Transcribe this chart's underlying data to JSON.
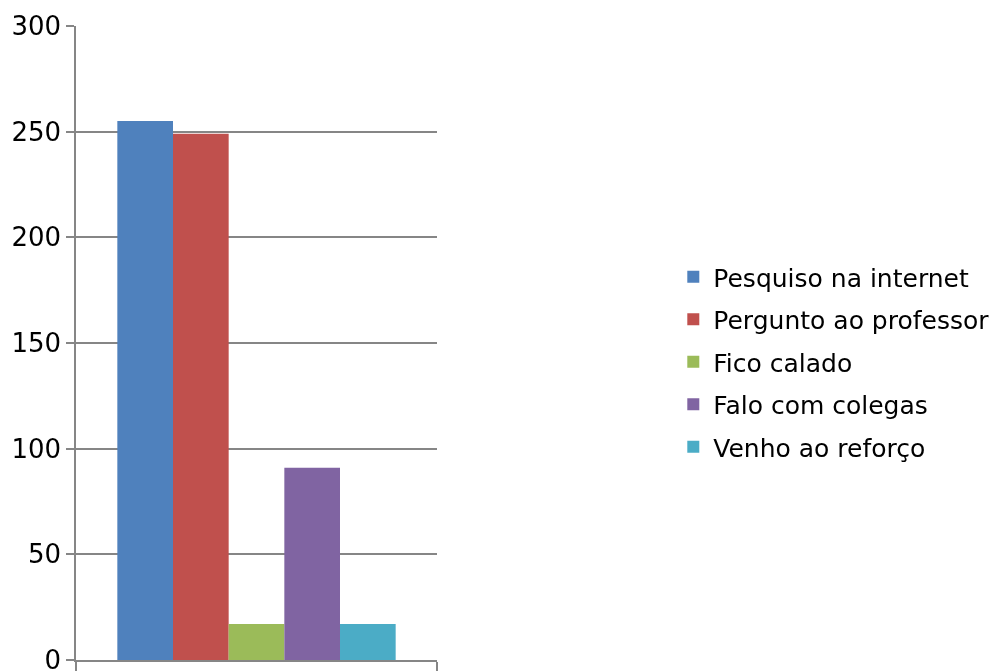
{
  "chart_data": {
    "type": "bar",
    "categories": [
      null
    ],
    "series": [
      {
        "name": "Pesquiso na internet",
        "color": "#4f81bd",
        "values": [
          255
        ]
      },
      {
        "name": "Pergunto ao professor",
        "color": "#c0504d",
        "values": [
          249
        ]
      },
      {
        "name": "Fico calado",
        "color": "#9bbb59",
        "values": [
          17
        ]
      },
      {
        "name": "Falo com colegas",
        "color": "#8064a2",
        "values": [
          91
        ]
      },
      {
        "name": "Venho ao reforço",
        "color": "#4bacc6",
        "values": [
          17
        ]
      }
    ],
    "ylim": [
      0,
      300
    ],
    "yticks": [
      0,
      50,
      100,
      150,
      200,
      250,
      300
    ],
    "grid": "y",
    "legend": "right"
  }
}
